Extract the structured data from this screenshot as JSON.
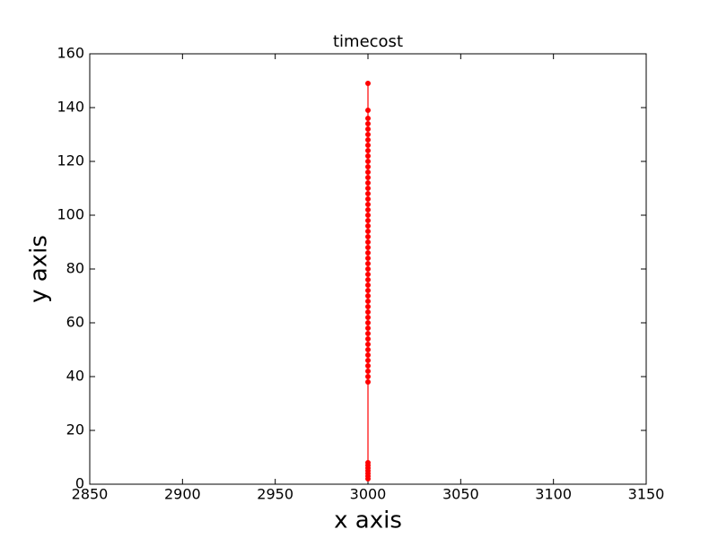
{
  "chart_data": {
    "type": "line",
    "title": "timecost",
    "xlabel": "x axis",
    "ylabel": "y axis",
    "series": [
      {
        "color": "#ff0000",
        "x": [
          3000,
          3000,
          3000,
          3000,
          3000,
          3000,
          3000,
          3000,
          3000,
          3000,
          3000,
          3000,
          3000,
          3000,
          3000,
          3000,
          3000,
          3000,
          3000,
          3000,
          3000,
          3000,
          3000,
          3000,
          3000,
          3000,
          3000,
          3000,
          3000,
          3000,
          3000,
          3000,
          3000,
          3000,
          3000,
          3000,
          3000,
          3000,
          3000,
          3000,
          3000,
          3000,
          3000,
          3000,
          3000,
          3000,
          3000,
          3000,
          3000,
          3000,
          3000,
          3000,
          3000,
          3000,
          3000,
          3000,
          3000,
          3000,
          3000
        ],
        "values": [
          149,
          139,
          136,
          134,
          132,
          130,
          128,
          126,
          124,
          122,
          120,
          118,
          116,
          114,
          112,
          110,
          108,
          106,
          104,
          102,
          100,
          98,
          96,
          94,
          92,
          90,
          88,
          86,
          84,
          82,
          80,
          78,
          76,
          74,
          72,
          70,
          68,
          66,
          64,
          62,
          60,
          58,
          56,
          54,
          52,
          50,
          48,
          46,
          44,
          42,
          40,
          38,
          8,
          7,
          6,
          5,
          4,
          3,
          2
        ]
      }
    ],
    "xlim": [
      2850,
      3150
    ],
    "xticks": [
      2850,
      2900,
      2950,
      3000,
      3050,
      3100,
      3150
    ],
    "ylim": [
      0,
      160
    ],
    "yticks": [
      0,
      20,
      40,
      60,
      80,
      100,
      120,
      140,
      160
    ],
    "grid": false
  }
}
